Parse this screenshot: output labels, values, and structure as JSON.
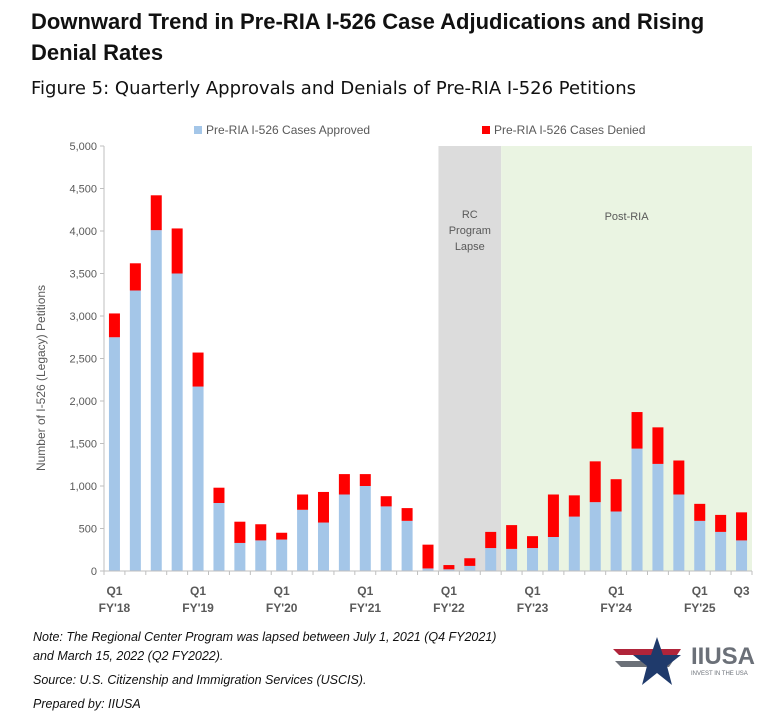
{
  "headline": "Downward Trend in Pre-RIA I-526 Case Adjudications and Rising Denial Rates",
  "figure_title": "Figure 5: Quarterly Approvals and Denials of Pre-RIA I-526 Petitions",
  "notes": {
    "note_line1": "Note: The Regional Center Program was lapsed between July 1, 2021 (Q4 FY2021)",
    "note_line2": "and March 15, 2022 (Q2 FY2022).",
    "source": "Source: U.S. Citizenship and Immigration Services (USCIS).",
    "prepared": "Prepared by: IIUSA"
  },
  "logo": {
    "name": "IIUSA",
    "tagline": "INVEST IN THE USA"
  },
  "chart_data": {
    "type": "bar",
    "stacked": true,
    "ylabel": "Number of I-526 (Legacy) Petitions",
    "xlabel": "",
    "ylim": [
      0,
      5000
    ],
    "yticks": [
      "0",
      "500",
      "1,000",
      "1,500",
      "2,000",
      "2,500",
      "3,000",
      "3,500",
      "4,000",
      "4,500",
      "5,000"
    ],
    "legend_position": "top",
    "grid": false,
    "categories": [
      "Q1 FY'18",
      "Q2 FY'18",
      "Q3 FY'18",
      "Q4 FY'18",
      "Q1 FY'19",
      "Q2 FY'19",
      "Q3 FY'19",
      "Q4 FY'19",
      "Q1 FY'20",
      "Q2 FY'20",
      "Q3 FY'20",
      "Q4 FY'20",
      "Q1 FY'21",
      "Q2 FY'21",
      "Q3 FY'21",
      "Q4 FY'21",
      "Q1 FY'22",
      "Q2 FY'22",
      "Q3 FY'22",
      "Q4 FY'22",
      "Q1 FY'23",
      "Q2 FY'23",
      "Q3 FY'23",
      "Q4 FY'23",
      "Q1 FY'24",
      "Q2 FY'24",
      "Q3 FY'24",
      "Q4 FY'24",
      "Q1 FY'25",
      "Q2 FY'25",
      "Q3 FY'25"
    ],
    "x_tick_labels": [
      {
        "index": 0,
        "q": "Q1",
        "fy": "FY'18"
      },
      {
        "index": 4,
        "q": "Q1",
        "fy": "FY'19"
      },
      {
        "index": 8,
        "q": "Q1",
        "fy": "FY'20"
      },
      {
        "index": 12,
        "q": "Q1",
        "fy": "FY'21"
      },
      {
        "index": 16,
        "q": "Q1",
        "fy": "FY'22"
      },
      {
        "index": 20,
        "q": "Q1",
        "fy": "FY'23"
      },
      {
        "index": 24,
        "q": "Q1",
        "fy": "FY'24"
      },
      {
        "index": 28,
        "q": "Q1",
        "fy": "FY'25"
      },
      {
        "index": 30,
        "q": "Q3",
        "fy": ""
      }
    ],
    "series": [
      {
        "name": "Pre-RIA I-526 Cases Approved",
        "color": "#a4c6e8",
        "values": [
          2750,
          3300,
          4010,
          3500,
          2170,
          800,
          330,
          360,
          370,
          720,
          570,
          900,
          1000,
          760,
          590,
          30,
          20,
          60,
          270,
          260,
          270,
          400,
          640,
          810,
          700,
          1440,
          1260,
          900,
          590,
          460,
          360
        ]
      },
      {
        "name": "Pre-RIA I-526 Cases Denied",
        "color": "#ff0000",
        "values": [
          280,
          320,
          410,
          530,
          400,
          180,
          250,
          190,
          80,
          180,
          360,
          240,
          140,
          120,
          150,
          280,
          50,
          90,
          190,
          280,
          140,
          500,
          250,
          480,
          380,
          430,
          430,
          400,
          200,
          200,
          330
        ]
      }
    ],
    "regions": [
      {
        "label": "RC Program Lapse",
        "start_index": 15.5,
        "end_index": 18.5,
        "color": "#dcdcdc"
      },
      {
        "label": "Post-RIA",
        "start_index": 18.5,
        "end_index": 30.5,
        "color": "#eaf4e2"
      }
    ]
  }
}
